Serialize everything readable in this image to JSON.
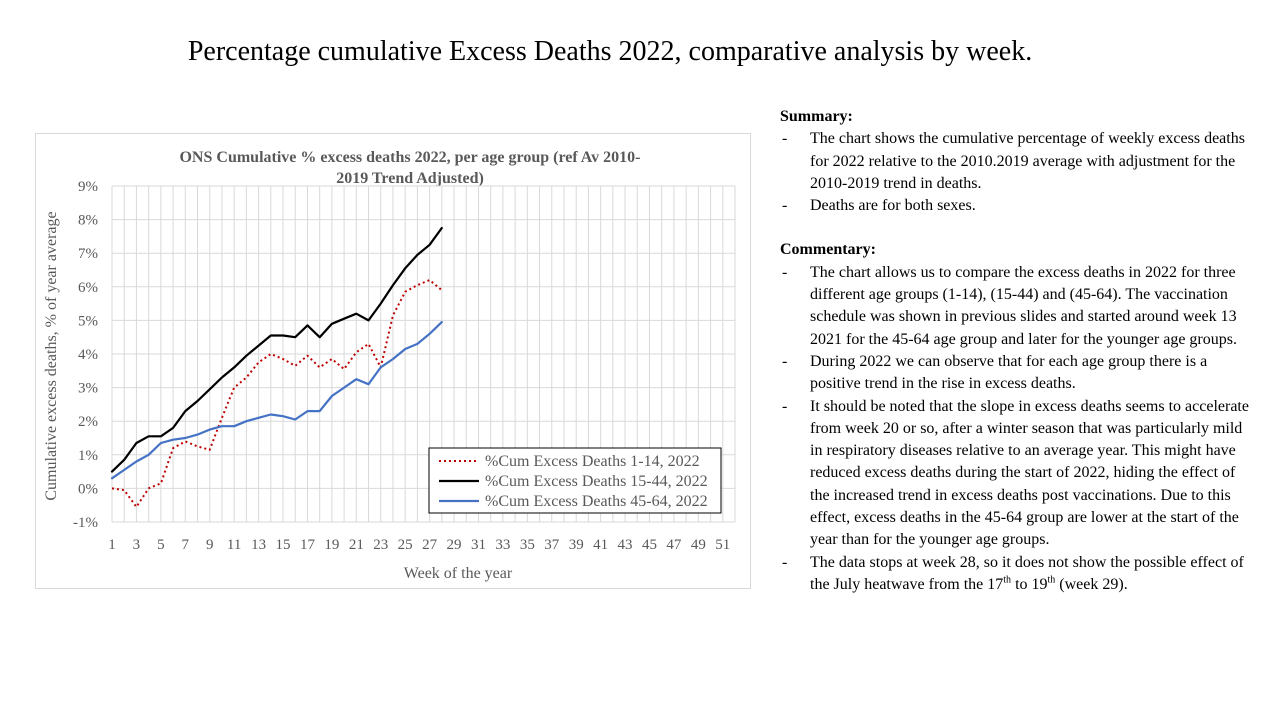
{
  "page": {
    "title": "Percentage cumulative Excess Deaths 2022, comparative analysis by week."
  },
  "summary": {
    "heading": "Summary:",
    "bullets": [
      "The chart shows the cumulative percentage of weekly excess deaths for  2022 relative to the 2010.2019 average with adjustment for the 2010-2019 trend in deaths.",
      "Deaths are for both sexes."
    ]
  },
  "commentary": {
    "heading": "Commentary:",
    "bullets": [
      "The chart allows us to compare the excess deaths in 2022 for three different age groups (1-14), (15-44) and (45-64). The vaccination schedule was shown in previous slides and started around week 13 2021 for the 45-64 age group and later for the younger age groups.",
      "During 2022 we can observe that for each age group there is a positive trend in the rise in excess deaths.",
      "It should be noted that the slope in excess deaths seems to accelerate from week 20 or so, after a winter season that was particularly mild in respiratory diseases relative to an average year. This might have reduced excess deaths during the start of 2022, hiding the effect of the increased trend in excess deaths post vaccinations. Due to this effect, excess deaths in the 45-64 group are lower at the start of the year than for the younger age groups."
    ],
    "last_bullet": {
      "part1": "The data stops at week 28, so it does not show the possible effect of the July heatwave from the 17",
      "sup1": "th",
      "part2": " to 19",
      "sup2": "th",
      "part3": " (week 29)."
    }
  },
  "chart_data": {
    "type": "line",
    "title": "ONS Cumulative % excess deaths 2022, per age group (ref Av 2010-2019 Trend Adjusted)",
    "title_lines": [
      "ONS Cumulative % excess deaths 2022, per age group (ref Av 2010-",
      "2019 Trend Adjusted)"
    ],
    "xlabel": "Week of the year",
    "ylabel": "Cumulative excess deaths, % of year average",
    "xlim": [
      1,
      52
    ],
    "ylim": [
      -1,
      9
    ],
    "x_tick_labels": [
      "1",
      "3",
      "5",
      "7",
      "9",
      "11",
      "13",
      "15",
      "17",
      "19",
      "21",
      "23",
      "25",
      "27",
      "29",
      "31",
      "33",
      "35",
      "37",
      "39",
      "41",
      "43",
      "45",
      "47",
      "49",
      "51"
    ],
    "y_tick_labels": [
      "-1%",
      "0%",
      "1%",
      "2%",
      "3%",
      "4%",
      "5%",
      "6%",
      "7%",
      "8%",
      "9%"
    ],
    "grid": true,
    "legend_position": "bottom-right",
    "x": [
      1,
      2,
      3,
      4,
      5,
      6,
      7,
      8,
      9,
      10,
      11,
      12,
      13,
      14,
      15,
      16,
      17,
      18,
      19,
      20,
      21,
      22,
      23,
      24,
      25,
      26,
      27,
      28
    ],
    "series": [
      {
        "name": "%Cum Excess Deaths 1-14, 2022",
        "color": "#c00000",
        "style": "dotted",
        "values": [
          0.0,
          -0.05,
          -0.55,
          0.0,
          0.15,
          1.2,
          1.4,
          1.25,
          1.15,
          2.1,
          3.0,
          3.3,
          3.75,
          4.0,
          3.85,
          3.65,
          3.95,
          3.6,
          3.85,
          3.55,
          4.05,
          4.3,
          3.6,
          5.15,
          5.85,
          6.05,
          6.2,
          5.9
        ]
      },
      {
        "name": "%Cum Excess Deaths 15-44, 2022",
        "color": "#000000",
        "style": "solid",
        "values": [
          0.5,
          0.85,
          1.35,
          1.55,
          1.55,
          1.8,
          2.3,
          2.6,
          2.95,
          3.3,
          3.6,
          3.95,
          4.25,
          4.55,
          4.55,
          4.5,
          4.85,
          4.5,
          4.9,
          5.05,
          5.2,
          5.0,
          5.5,
          6.05,
          6.55,
          6.95,
          7.25,
          7.75
        ]
      },
      {
        "name": "%Cum Excess Deaths 45-64, 2022",
        "color": "#4472c4",
        "style": "solid",
        "values": [
          0.3,
          0.55,
          0.8,
          1.0,
          1.35,
          1.45,
          1.5,
          1.6,
          1.75,
          1.85,
          1.85,
          2.0,
          2.1,
          2.2,
          2.15,
          2.05,
          2.3,
          2.3,
          2.75,
          3.0,
          3.25,
          3.1,
          3.6,
          3.85,
          4.15,
          4.3,
          4.6,
          4.95
        ]
      }
    ]
  }
}
